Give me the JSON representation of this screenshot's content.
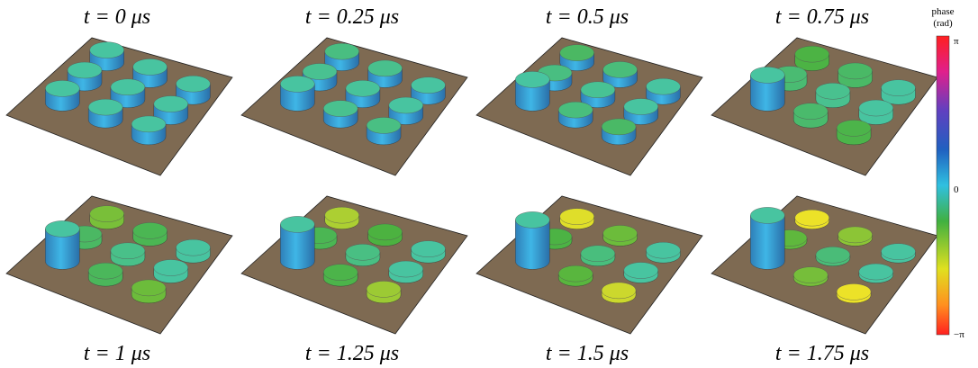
{
  "panels": [
    {
      "label": "t = 0 μs"
    },
    {
      "label": "t = 0.25 μs"
    },
    {
      "label": "t = 0.5 μs"
    },
    {
      "label": "t = 0.75 μs"
    },
    {
      "label": "t = 1 μs"
    },
    {
      "label": "t = 1.25 μs"
    },
    {
      "label": "t = 1.5 μs"
    },
    {
      "label": "t = 1.75 μs"
    }
  ],
  "colorbar": {
    "title": [
      "phase",
      "(rad)"
    ],
    "ticks": [
      "π",
      "0",
      "−π"
    ]
  }
}
